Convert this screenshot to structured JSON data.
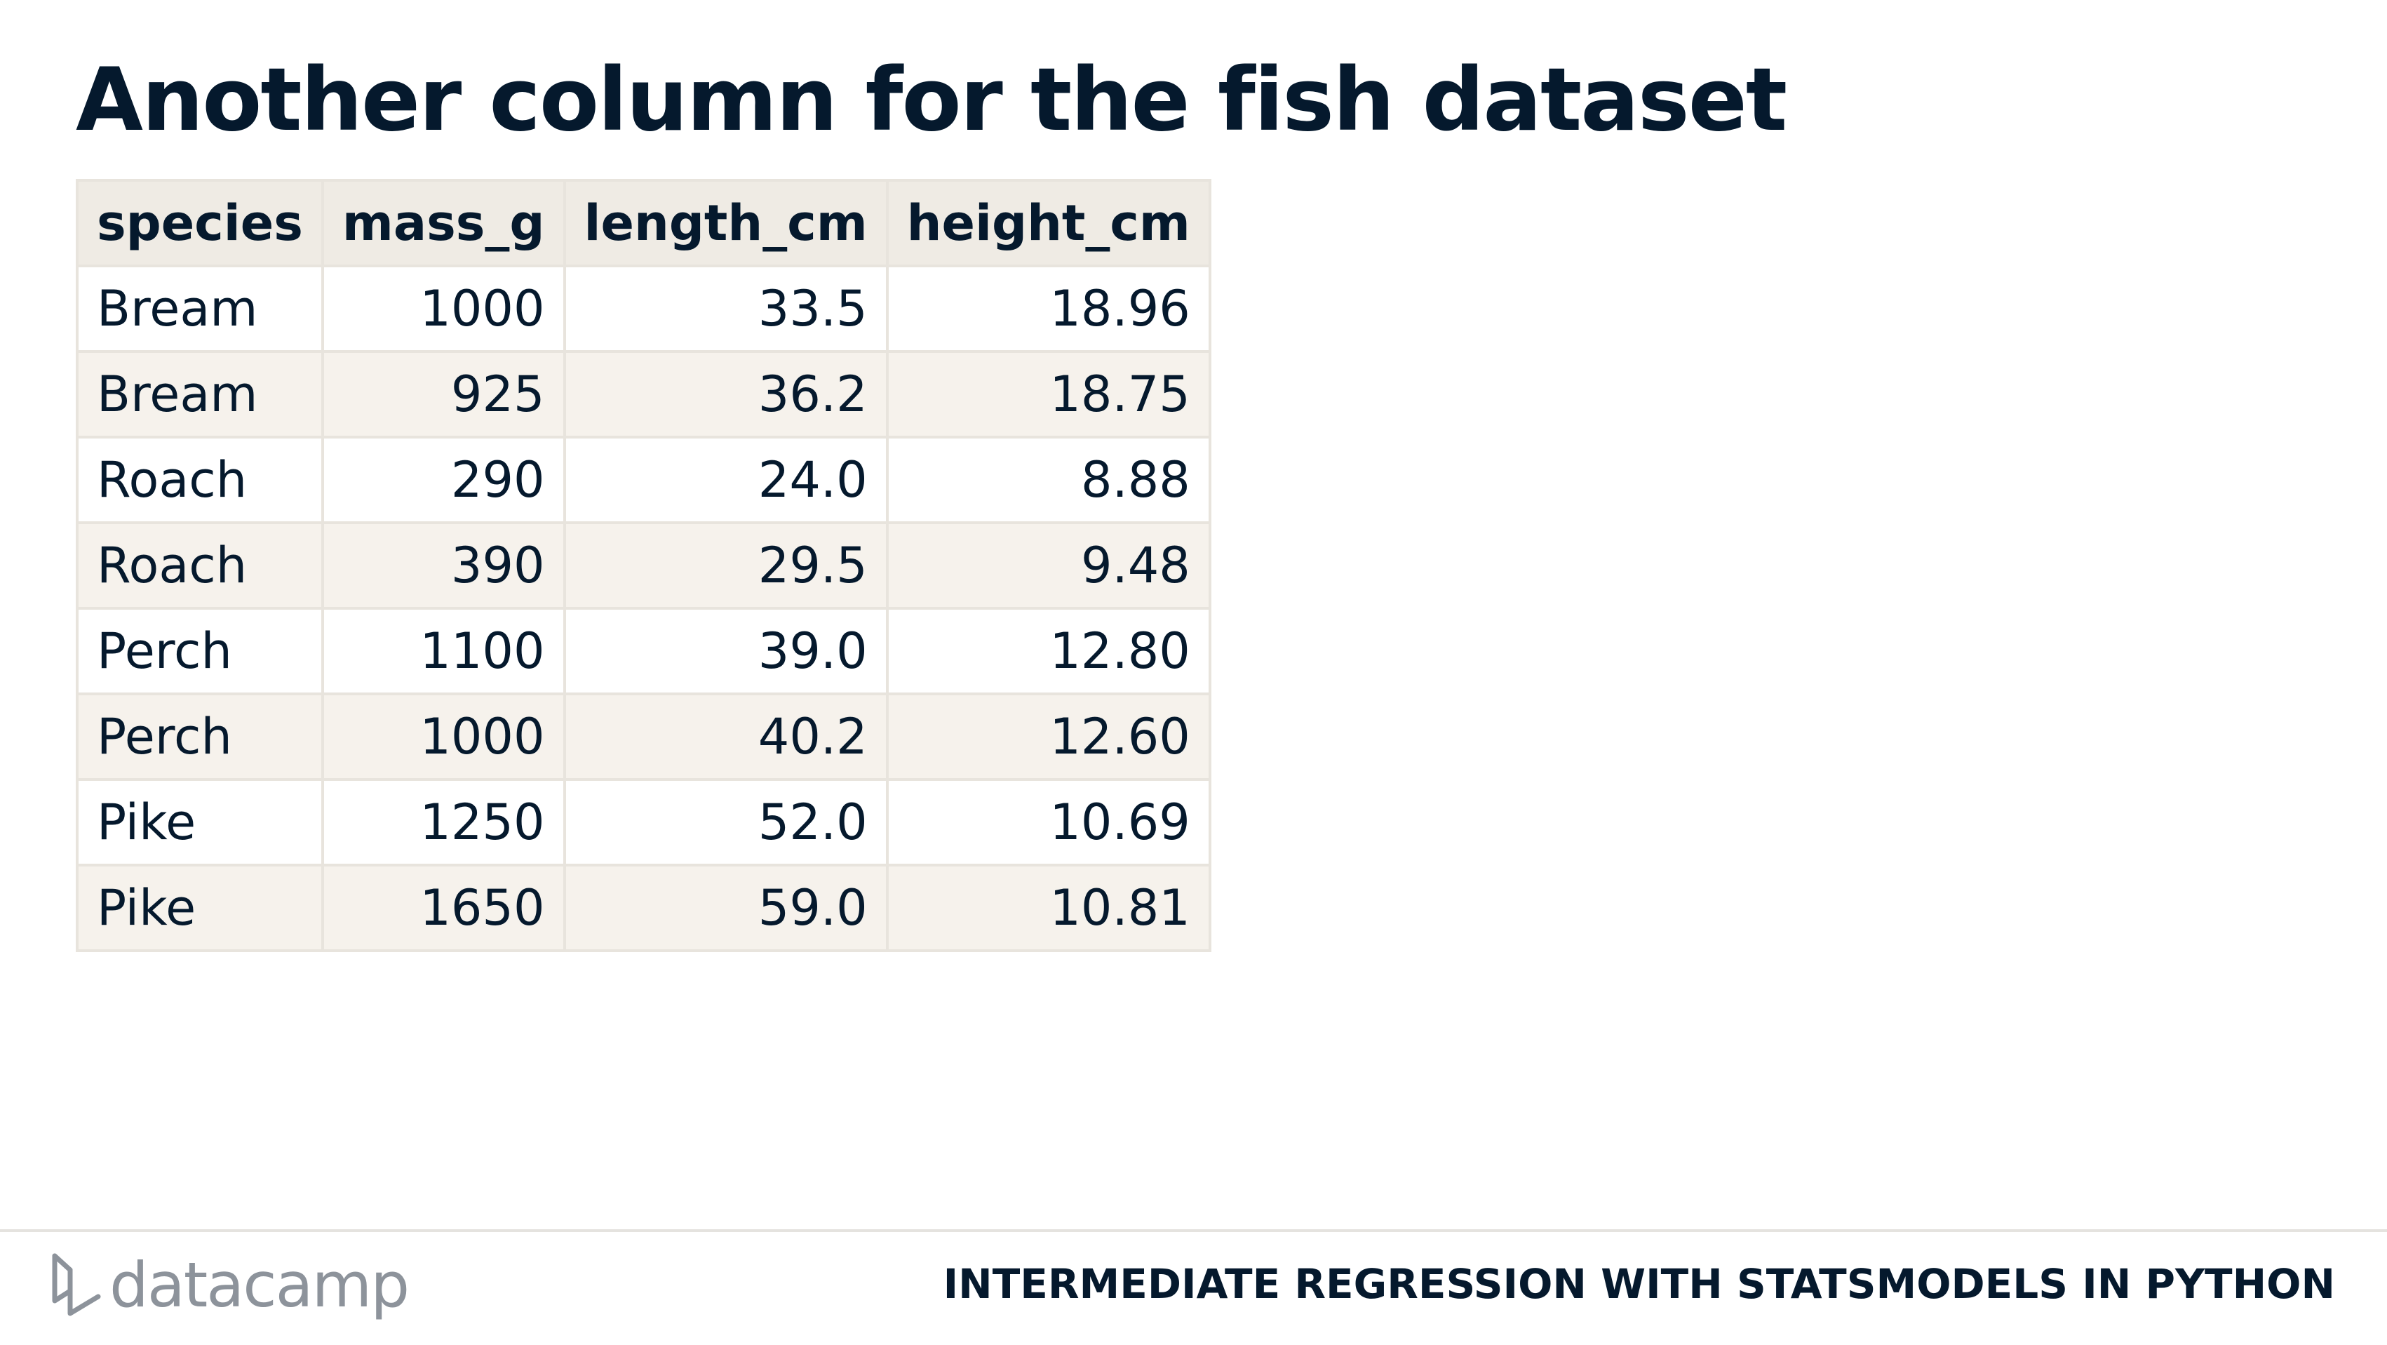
{
  "slide": {
    "title": "Another column for the fish dataset"
  },
  "table": {
    "columns": [
      "species",
      "mass_g",
      "length_cm",
      "height_cm"
    ],
    "rows": [
      [
        "Bream",
        "1000",
        "33.5",
        "18.96"
      ],
      [
        "Bream",
        "925",
        "36.2",
        "18.75"
      ],
      [
        "Roach",
        "290",
        "24.0",
        "8.88"
      ],
      [
        "Roach",
        "390",
        "29.5",
        "9.48"
      ],
      [
        "Perch",
        "1100",
        "39.0",
        "12.80"
      ],
      [
        "Perch",
        "1000",
        "40.2",
        "12.60"
      ],
      [
        "Pike",
        "1250",
        "52.0",
        "10.69"
      ],
      [
        "Pike",
        "1650",
        "59.0",
        "10.81"
      ]
    ]
  },
  "footer": {
    "logo_text": "datacamp",
    "course_title": "INTERMEDIATE REGRESSION WITH STATSMODELS IN PYTHON"
  },
  "colors": {
    "text": "#05192d",
    "header_bg": "#efebe4",
    "row_alt_bg": "#f6f2ec",
    "border": "#e8e4dd",
    "logo": "#8d939b"
  }
}
